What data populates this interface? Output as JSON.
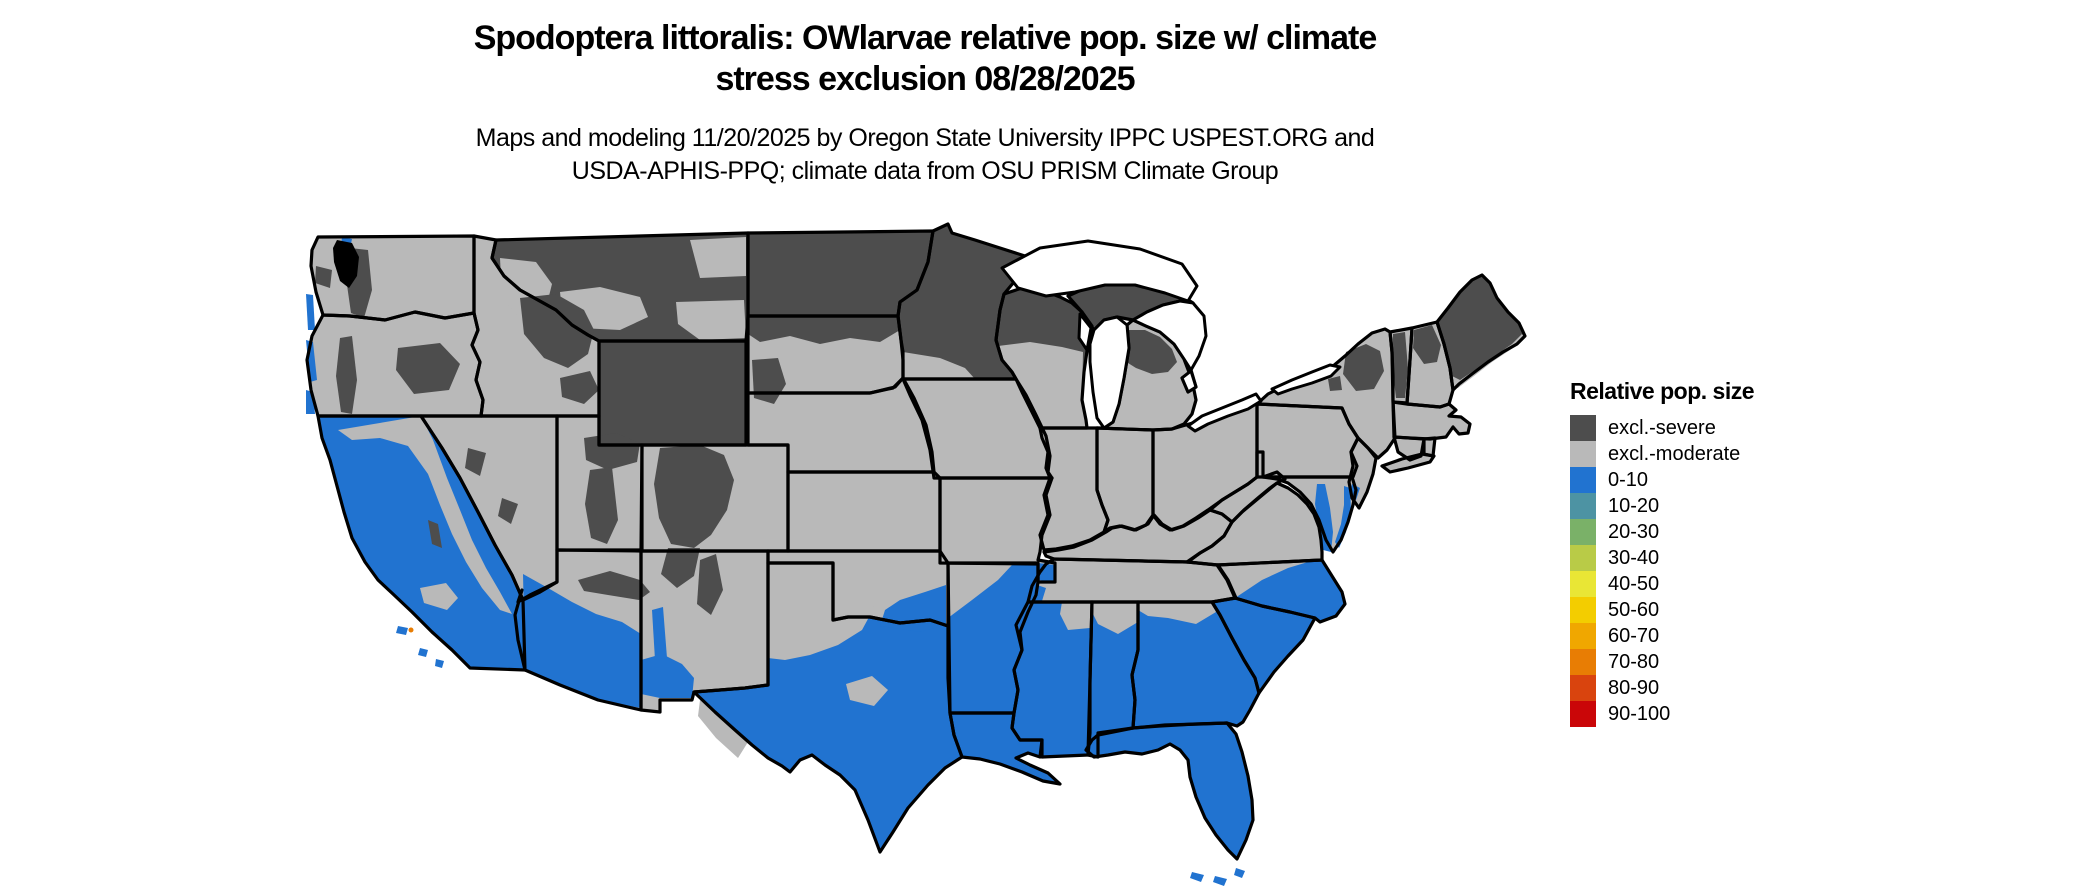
{
  "title": {
    "line1": "Spodoptera littoralis: OWlarvae relative pop. size w/ climate",
    "line2": "stress exclusion 08/28/2025"
  },
  "subtitle": {
    "line1": "Maps and modeling 11/20/2025 by Oregon State University IPPC USPEST.ORG and",
    "line2": "USDA-APHIS-PPQ; climate data from OSU PRISM Climate Group"
  },
  "legend": {
    "title": "Relative pop. size",
    "items": [
      {
        "label": "excl.-severe",
        "color": "#4d4d4d"
      },
      {
        "label": "excl.-moderate",
        "color": "#b9b9b9"
      },
      {
        "label": "0-10",
        "color": "#2173d0"
      },
      {
        "label": "10-20",
        "color": "#4d93a3"
      },
      {
        "label": "20-30",
        "color": "#7ab168"
      },
      {
        "label": "30-40",
        "color": "#b9cb47"
      },
      {
        "label": "40-50",
        "color": "#e9e635"
      },
      {
        "label": "50-60",
        "color": "#f3cd00"
      },
      {
        "label": "60-70",
        "color": "#f0a700"
      },
      {
        "label": "70-80",
        "color": "#e87d04"
      },
      {
        "label": "80-90",
        "color": "#d9440e"
      },
      {
        "label": "90-100",
        "color": "#ca0608"
      }
    ]
  },
  "map": {
    "region": "Continental United States",
    "type": "raster choropleth with state borders",
    "border_color": "#000000",
    "background_color": "#ffffff",
    "water_color": "#ffffff",
    "classes_visible_on_map": [
      "excl.-severe",
      "excl.-moderate",
      "0-10",
      "70-80"
    ],
    "severe_dominant_areas": "Northern tier (MT, ND, MN, WI, upper MI, northern ME/NH/VT, Adirondacks NY) and Rocky Mountains (ID, WY, UT, CO highlands, Black Hills, Cascades)",
    "low_0_10_areas": "Southern band: CA coast and Central Valley, southern AZ and NM, southern and eastern TX, LA, southern AR, MS, AL, GA, SC, FL, coastal NC and VA, Delmarva shores",
    "moderate_areas": "Central and eastern interior states"
  }
}
